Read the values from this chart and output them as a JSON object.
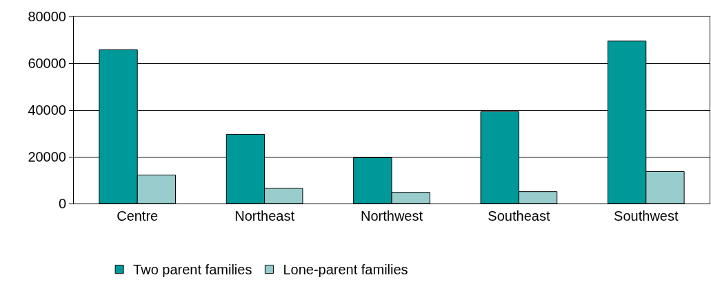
{
  "chart_data": {
    "type": "bar",
    "categories": [
      "Centre",
      "Northeast",
      "Northwest",
      "Southeast",
      "Southwest"
    ],
    "series": [
      {
        "name": "Two parent families",
        "color": "#009999",
        "values": [
          65800,
          29600,
          19600,
          39300,
          69500
        ]
      },
      {
        "name": "Lone-parent families",
        "color": "#99cccc",
        "values": [
          12200,
          6500,
          4800,
          5100,
          13700
        ]
      }
    ],
    "ylim": [
      0,
      80000
    ],
    "yticks": [
      0,
      20000,
      40000,
      60000,
      80000
    ],
    "grid": "y",
    "legend": "bottom"
  }
}
